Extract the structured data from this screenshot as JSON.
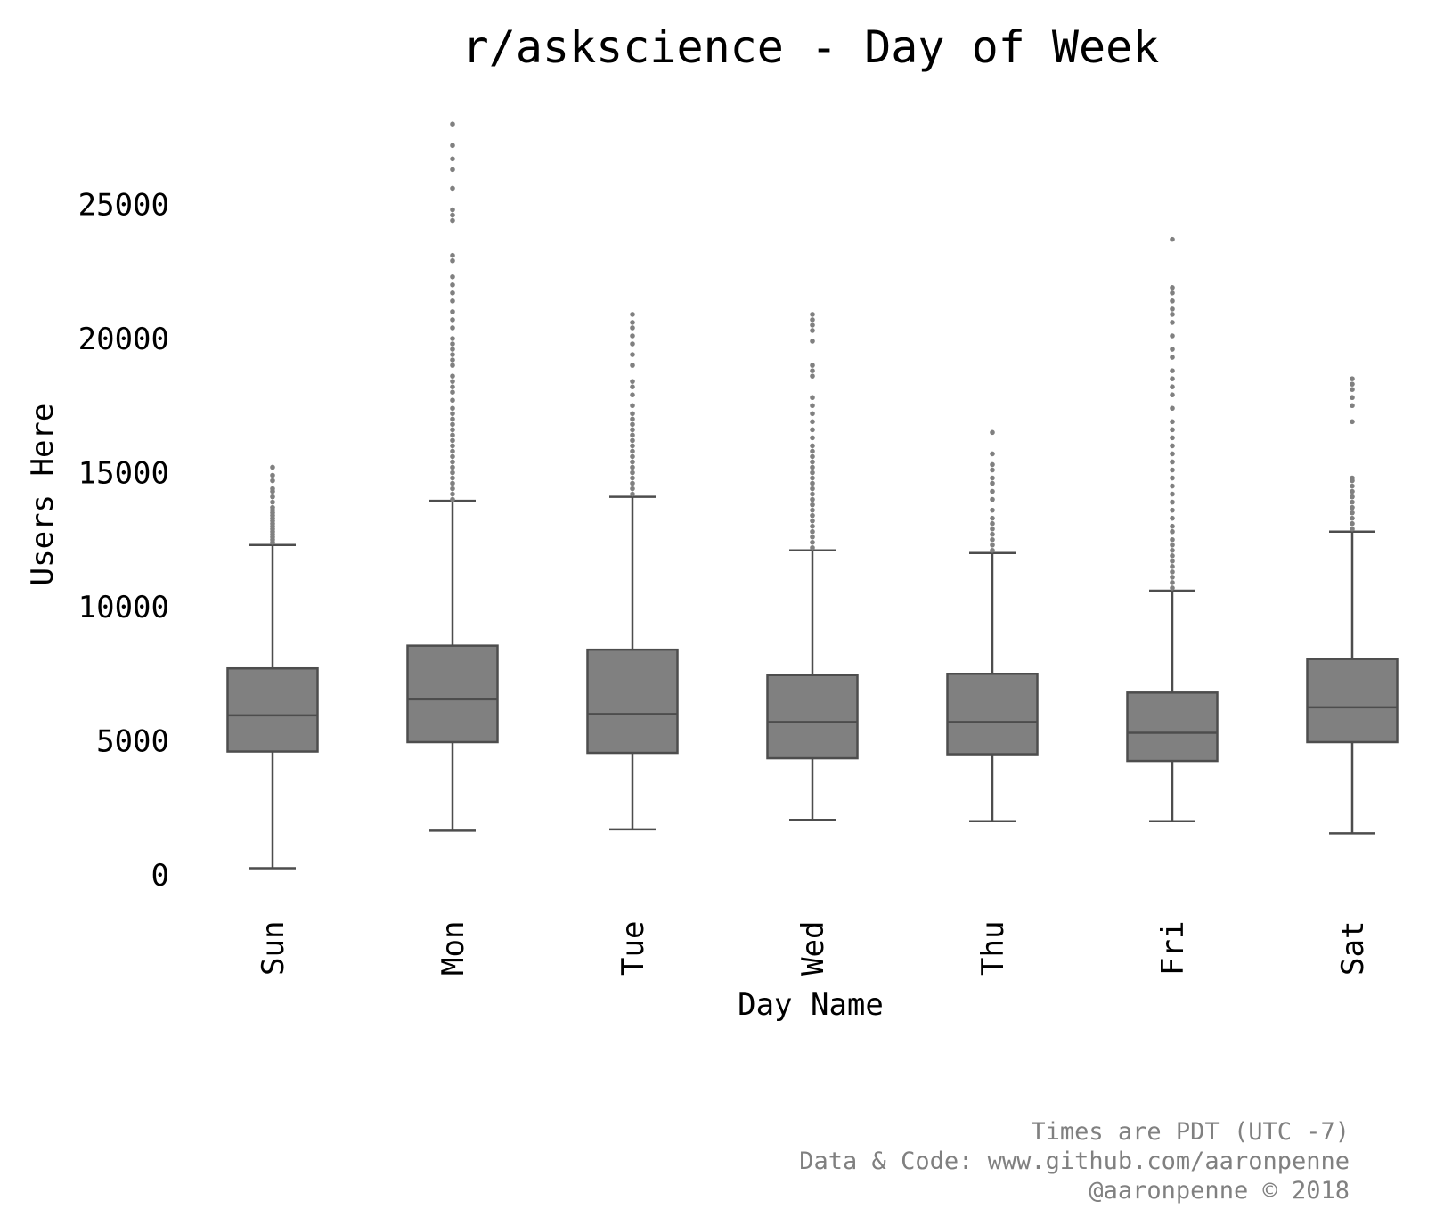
{
  "chart_data": {
    "type": "box",
    "title": "r/askscience - Day of Week",
    "xlabel": "Day Name",
    "ylabel": "Users Here",
    "ylim": [
      -500,
      28500
    ],
    "yticks": [
      0,
      5000,
      10000,
      15000,
      20000,
      25000
    ],
    "categories": [
      "Sun",
      "Mon",
      "Tue",
      "Wed",
      "Thu",
      "Fri",
      "Sat"
    ],
    "boxes": [
      {
        "day": "Sun",
        "whisker_low": 250,
        "q1": 4600,
        "median": 5950,
        "q3": 7700,
        "whisker_high": 12300
      },
      {
        "day": "Mon",
        "whisker_low": 1650,
        "q1": 4950,
        "median": 6550,
        "q3": 8550,
        "whisker_high": 13950
      },
      {
        "day": "Tue",
        "whisker_low": 1700,
        "q1": 4550,
        "median": 6000,
        "q3": 8400,
        "whisker_high": 14100
      },
      {
        "day": "Wed",
        "whisker_low": 2050,
        "q1": 4350,
        "median": 5700,
        "q3": 7450,
        "whisker_high": 12100
      },
      {
        "day": "Thu",
        "whisker_low": 2000,
        "q1": 4500,
        "median": 5700,
        "q3": 7500,
        "whisker_high": 12000
      },
      {
        "day": "Fri",
        "whisker_low": 2000,
        "q1": 4250,
        "median": 5300,
        "q3": 6800,
        "whisker_high": 10600
      },
      {
        "day": "Sat",
        "whisker_low": 1550,
        "q1": 4950,
        "median": 6250,
        "q3": 8050,
        "whisker_high": 12800
      }
    ],
    "outliers": [
      [
        12400,
        12500,
        12600,
        12700,
        12800,
        12900,
        13000,
        13100,
        13200,
        13300,
        13400,
        13500,
        13600,
        13700,
        13900,
        14100,
        14300,
        14400,
        14700,
        14900,
        15200
      ],
      [
        14000,
        14200,
        14400,
        14600,
        14800,
        15000,
        15200,
        15400,
        15600,
        15800,
        16000,
        16200,
        16400,
        16600,
        16800,
        17000,
        17200,
        17400,
        17700,
        18000,
        18200,
        18400,
        18600,
        19000,
        19200,
        19400,
        19600,
        19800,
        20000,
        20400,
        20700,
        21000,
        21400,
        21700,
        22000,
        22300,
        22900,
        23100,
        24400,
        24600,
        24800,
        25600,
        26300,
        26700,
        27200,
        28000
      ],
      [
        14200,
        14400,
        14600,
        14800,
        15000,
        15200,
        15400,
        15600,
        15800,
        16000,
        16200,
        16400,
        16600,
        16800,
        17000,
        17200,
        17500,
        17900,
        18200,
        18400,
        19000,
        19400,
        19800,
        20100,
        20400,
        20600,
        20900
      ],
      [
        12200,
        12400,
        12600,
        12800,
        13000,
        13200,
        13400,
        13600,
        13800,
        14000,
        14200,
        14400,
        14600,
        14800,
        15000,
        15200,
        15400,
        15600,
        15800,
        16000,
        16300,
        16600,
        16900,
        17200,
        17500,
        17800,
        18600,
        18800,
        19000,
        19900,
        20300,
        20500,
        20700,
        20900
      ],
      [
        12100,
        12300,
        12500,
        12700,
        12900,
        13100,
        13300,
        13600,
        14000,
        14300,
        14600,
        14800,
        15100,
        15300,
        15700,
        16500
      ],
      [
        10700,
        10900,
        11100,
        11300,
        11500,
        11700,
        11900,
        12100,
        12300,
        12500,
        12800,
        13000,
        13300,
        13600,
        13900,
        14200,
        14500,
        14800,
        15100,
        15400,
        15700,
        16000,
        16300,
        16600,
        16900,
        17400,
        17900,
        18200,
        18500,
        18800,
        19300,
        19600,
        20100,
        20600,
        20900,
        21100,
        21400,
        21700,
        21900,
        23700
      ],
      [
        12900,
        13100,
        13300,
        13500,
        13700,
        13900,
        14100,
        14300,
        14500,
        14700,
        14800,
        16900,
        17500,
        17800,
        18100,
        18300,
        18500
      ]
    ],
    "colors": {
      "box_fill": "#808080",
      "line": "#4d4d4d",
      "outlier": "#808080"
    }
  },
  "footer": {
    "line1": "Times are PDT (UTC -7)",
    "line2": "Data & Code: www.github.com/aaronpenne",
    "line3": "@aaronpenne © 2018"
  }
}
